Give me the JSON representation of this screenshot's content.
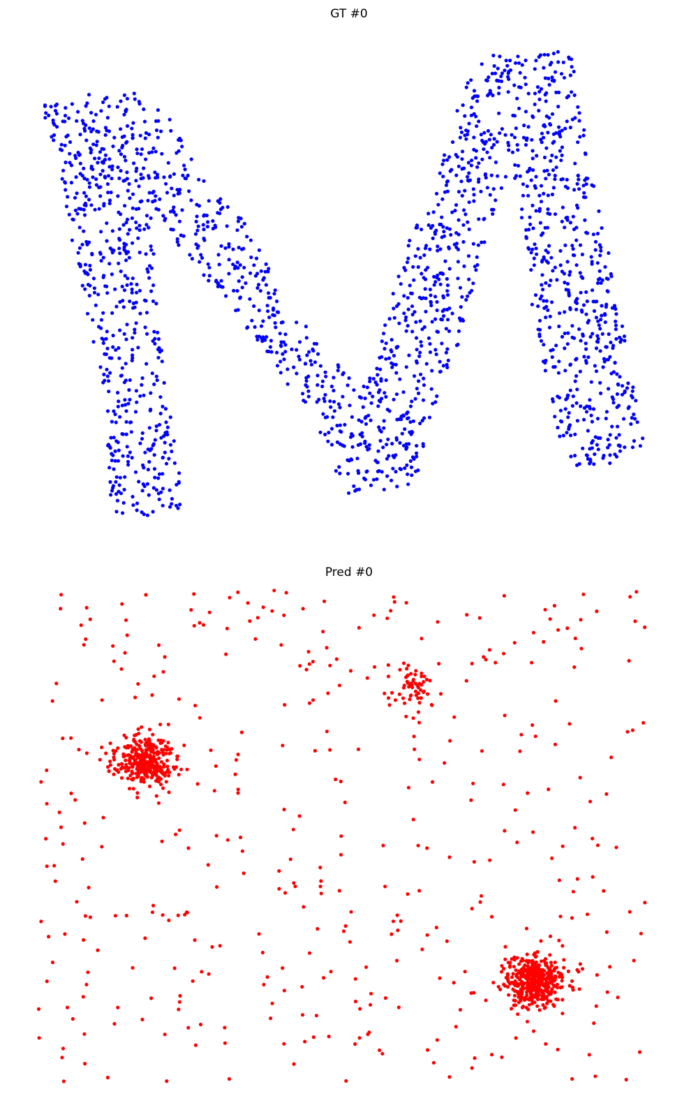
{
  "chart_data": [
    {
      "type": "scatter",
      "title": "GT #0",
      "axes": "off",
      "grid": false,
      "color": "#0000ff",
      "xlim": [
        0,
        1000
      ],
      "ylim": [
        0,
        800
      ],
      "shape": "letter-M",
      "path": [
        [
          59,
          152
        ],
        [
          128,
          135
        ],
        [
          206,
          133
        ],
        [
          248,
          173
        ],
        [
          285,
          248
        ],
        [
          348,
          315
        ],
        [
          405,
          415
        ],
        [
          460,
          500
        ],
        [
          494,
          530
        ],
        [
          510,
          560
        ],
        [
          535,
          528
        ],
        [
          576,
          370
        ],
        [
          627,
          245
        ],
        [
          680,
          80
        ],
        [
          760,
          75
        ],
        [
          822,
          70
        ],
        [
          838,
          195
        ],
        [
          862,
          305
        ],
        [
          890,
          455
        ],
        [
          923,
          640
        ],
        [
          840,
          680
        ],
        [
          805,
          645
        ],
        [
          770,
          490
        ],
        [
          745,
          330
        ],
        [
          735,
          230
        ],
        [
          712,
          290
        ],
        [
          660,
          485
        ],
        [
          630,
          550
        ],
        [
          598,
          690
        ],
        [
          545,
          708
        ],
        [
          494,
          712
        ],
        [
          455,
          610
        ],
        [
          390,
          520
        ],
        [
          330,
          440
        ],
        [
          255,
          350
        ],
        [
          220,
          300
        ],
        [
          225,
          460
        ],
        [
          265,
          720
        ],
        [
          245,
          742
        ],
        [
          160,
          738
        ],
        [
          150,
          560
        ],
        [
          110,
          395
        ],
        [
          95,
          300
        ],
        [
          79,
          215
        ]
      ],
      "point_count": 2000,
      "seed": 11
    },
    {
      "type": "scatter",
      "title": "Pred #0",
      "axes": "off",
      "grid": false,
      "color": "#ff0000",
      "xlim": [
        0,
        1000
      ],
      "ylim": [
        0,
        800
      ],
      "clusters": [
        {
          "cx": 205,
          "cy": 290,
          "sx": 21,
          "sy": 19,
          "n": 340
        },
        {
          "cx": 765,
          "cy": 605,
          "sx": 22,
          "sy": 18,
          "n": 380
        },
        {
          "cx": 595,
          "cy": 180,
          "sx": 18,
          "sy": 17,
          "n": 60
        }
      ],
      "scatter_bounds": [
        55,
        45,
        925,
        750
      ],
      "scatter_count": 400,
      "seed": 23
    }
  ]
}
